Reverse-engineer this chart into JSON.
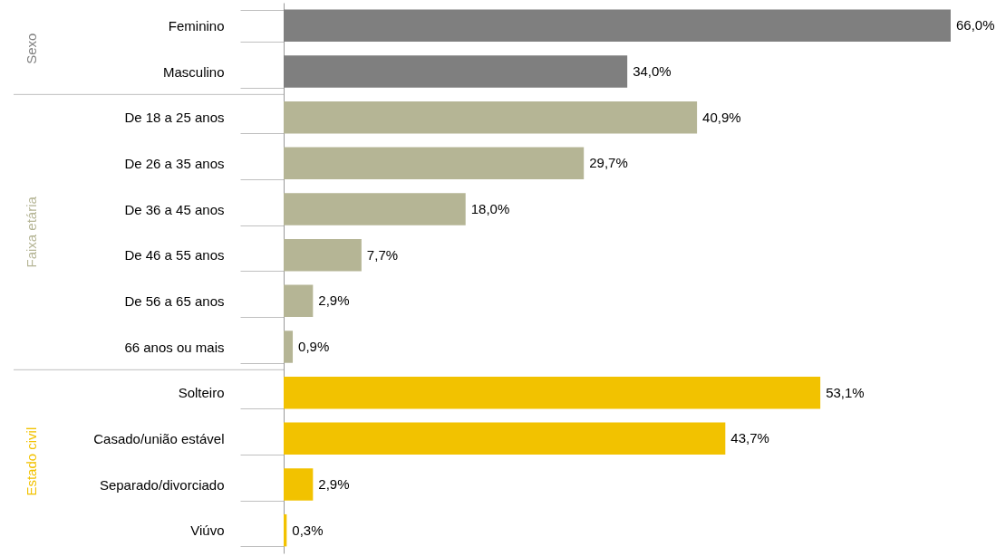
{
  "chart_data": {
    "type": "bar",
    "orientation": "horizontal",
    "categories": [
      "Feminino",
      "Masculino",
      "De 18 a 25 anos",
      "De 26 a 35 anos",
      "De 36 a 45 anos",
      "De 46 a 55 anos",
      "De 56 a 65 anos",
      "66 anos ou mais",
      "Solteiro",
      "Casado/união estável",
      "Separado/divorciado",
      "Viúvo"
    ],
    "series": [
      {
        "name": "Sexo",
        "color": "#7f7f7f",
        "values": [
          66.0,
          34.0,
          null,
          null,
          null,
          null,
          null,
          null,
          null,
          null,
          null,
          null
        ],
        "value_labels": [
          "66,0%",
          "34,0%",
          null,
          null,
          null,
          null,
          null,
          null,
          null,
          null,
          null,
          null
        ]
      },
      {
        "name": "Faixa etária",
        "color": "#b5b595",
        "values": [
          null,
          null,
          40.9,
          29.7,
          18.0,
          7.7,
          2.9,
          0.9,
          null,
          null,
          null,
          null
        ],
        "value_labels": [
          null,
          null,
          "40,9%",
          "29,7%",
          "18,0%",
          "7,7%",
          "2,9%",
          "0,9%",
          null,
          null,
          null,
          null
        ]
      },
      {
        "name": "Estado civil",
        "color": "#f2c200",
        "values": [
          null,
          null,
          null,
          null,
          null,
          null,
          null,
          null,
          53.1,
          43.7,
          2.9,
          0.3
        ],
        "value_labels": [
          null,
          null,
          null,
          null,
          null,
          null,
          null,
          null,
          "53,1%",
          "43,7%",
          "2,9%",
          "0,3%"
        ]
      }
    ]
  }
}
